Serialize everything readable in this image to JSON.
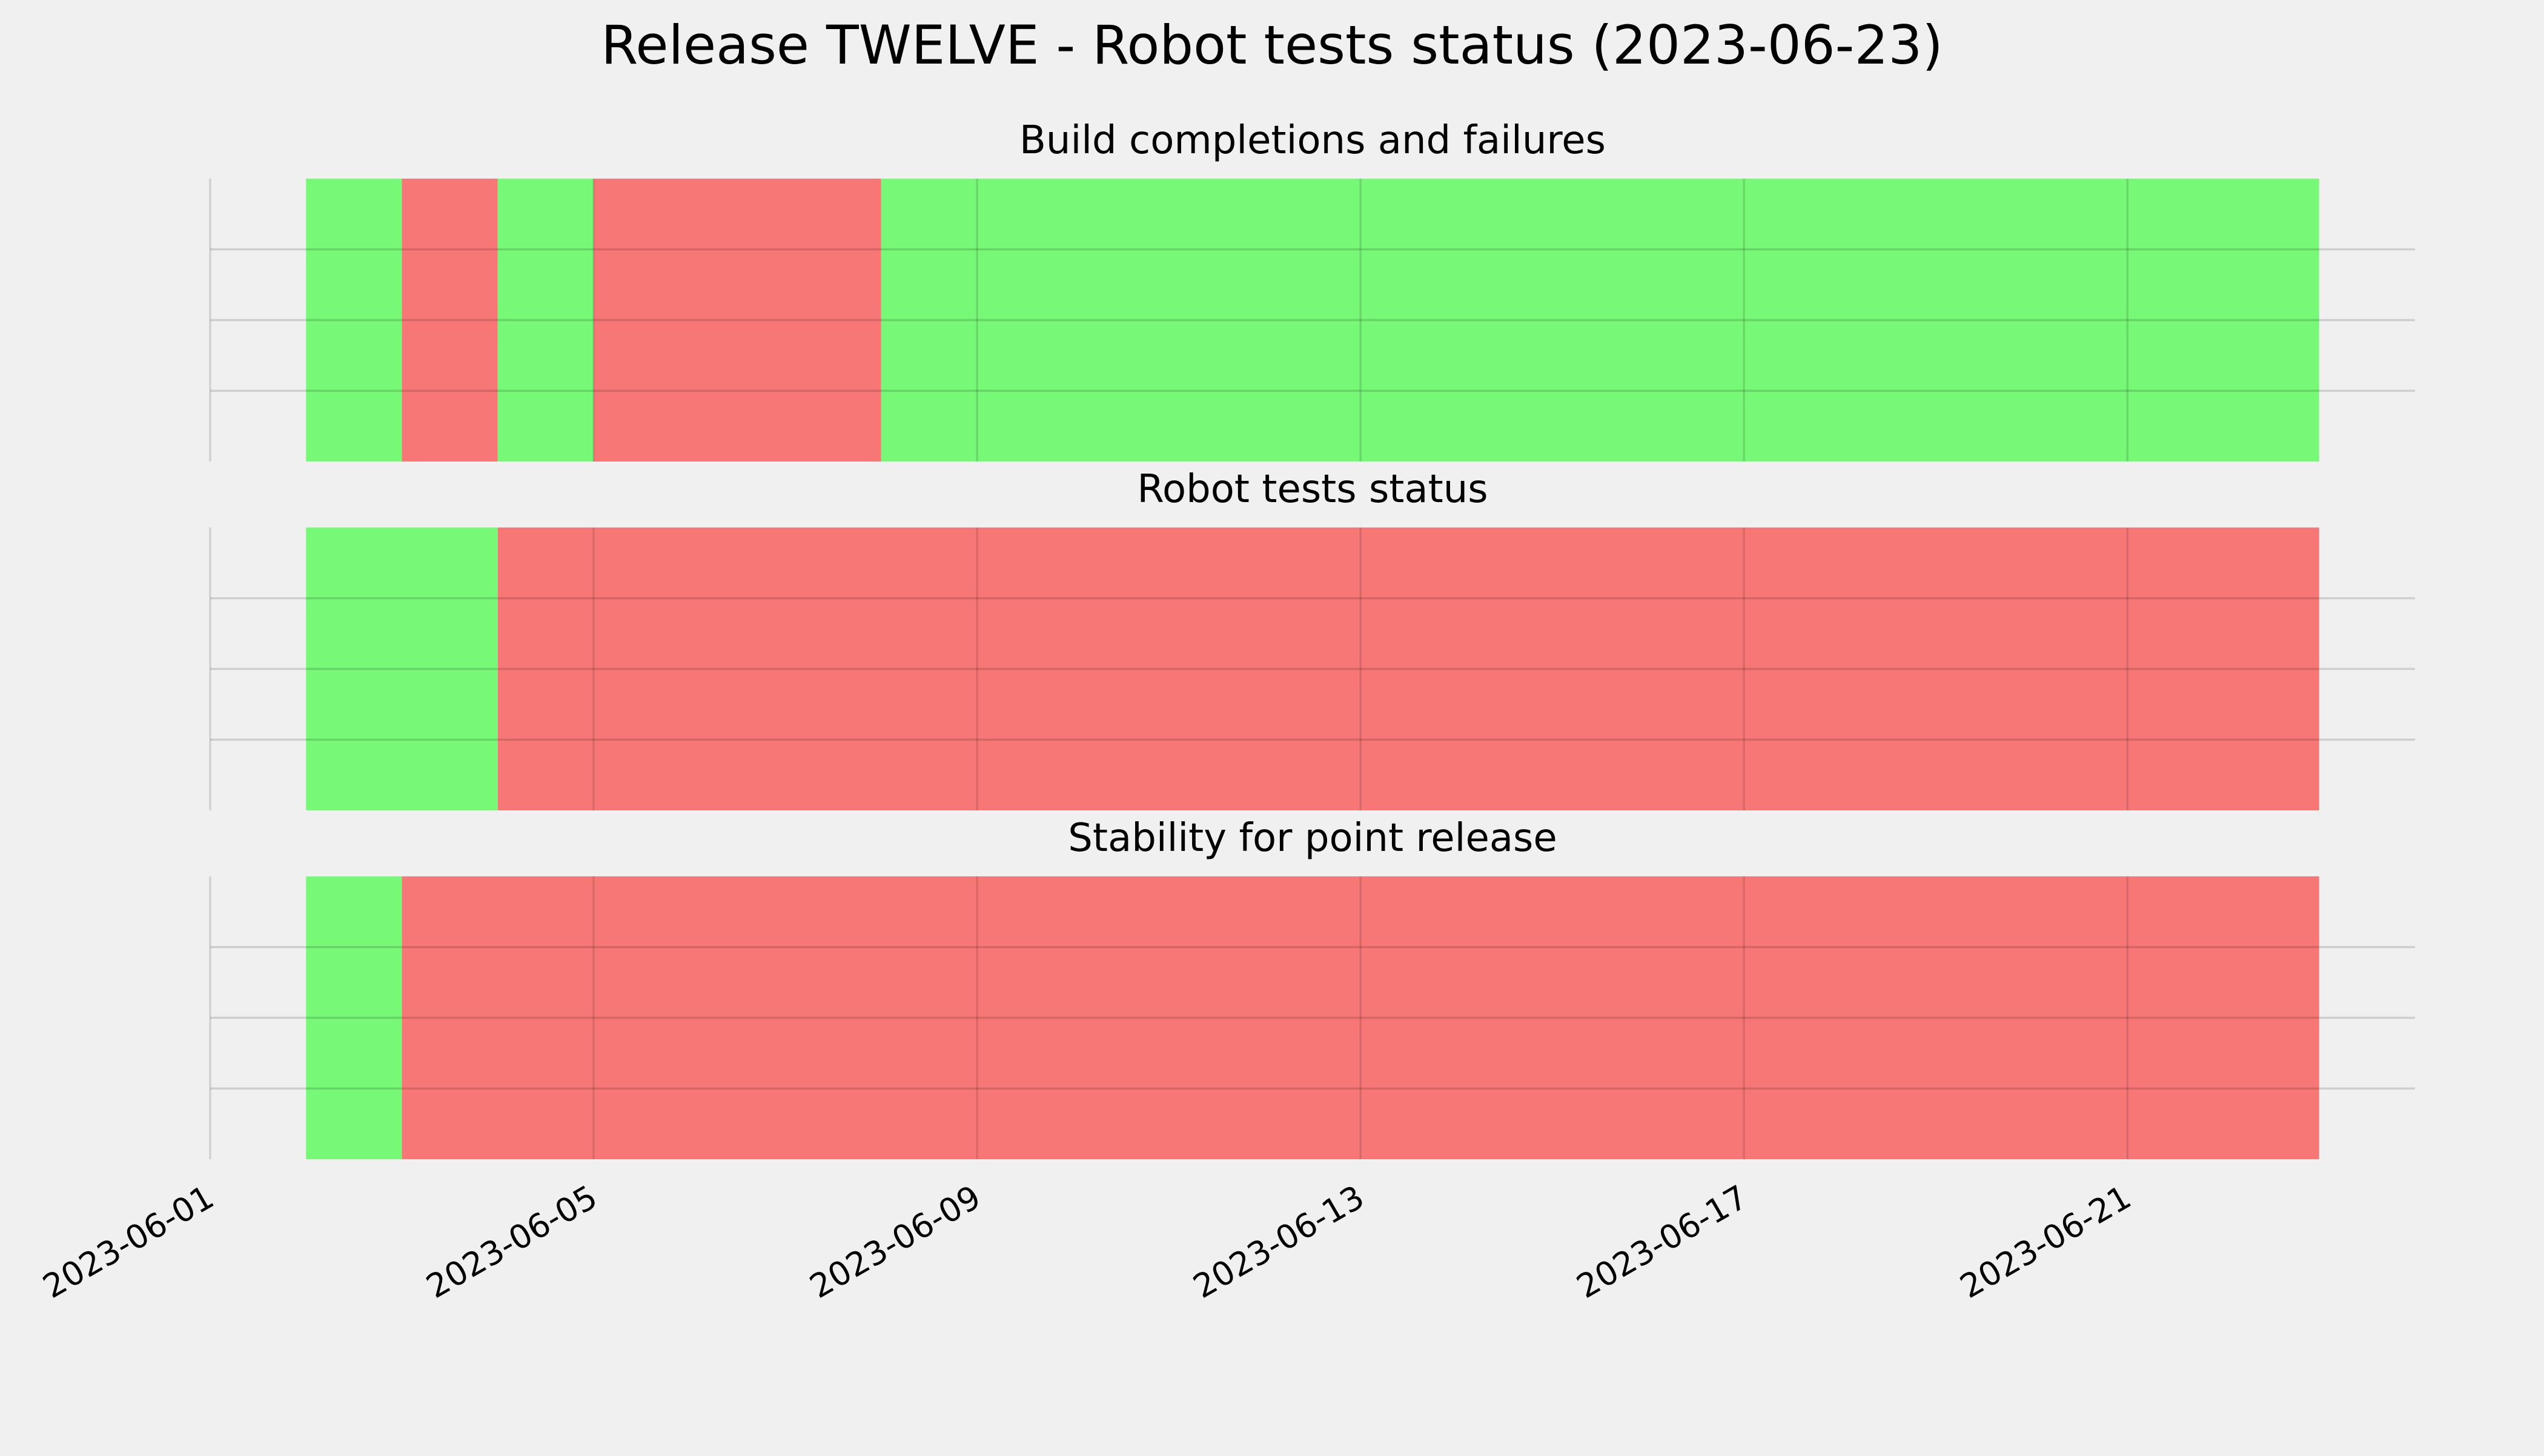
{
  "chart_data": {
    "type": "bar",
    "subtype": "timeline-status-strips",
    "title": "Release TWELVE - Robot tests status (2023-06-23)",
    "x_axis": {
      "type": "date",
      "range": [
        "2023-06-01",
        "2023-06-24"
      ],
      "tick_labels": [
        "2023-06-01",
        "2023-06-05",
        "2023-06-09",
        "2023-06-13",
        "2023-06-17",
        "2023-06-21"
      ],
      "tick_label_rotation_deg": 30
    },
    "y_axis": {
      "tick_labels": [],
      "grid": true
    },
    "grid": true,
    "legend": "none",
    "status_colors": {
      "pass": "#77f877",
      "fail": "#f77777"
    },
    "panels": [
      {
        "title": "Build completions and failures",
        "segments": [
          {
            "start": "2023-06-02",
            "end": "2023-06-03",
            "status": "pass"
          },
          {
            "start": "2023-06-03",
            "end": "2023-06-04",
            "status": "fail"
          },
          {
            "start": "2023-06-04",
            "end": "2023-06-05",
            "status": "pass"
          },
          {
            "start": "2023-06-05",
            "end": "2023-06-08",
            "status": "fail"
          },
          {
            "start": "2023-06-08",
            "end": "2023-06-23",
            "status": "pass"
          }
        ]
      },
      {
        "title": "Robot tests status",
        "segments": [
          {
            "start": "2023-06-02",
            "end": "2023-06-04",
            "status": "pass"
          },
          {
            "start": "2023-06-04",
            "end": "2023-06-23",
            "status": "fail"
          }
        ]
      },
      {
        "title": "Stability for point release",
        "segments": [
          {
            "start": "2023-06-02",
            "end": "2023-06-03",
            "status": "pass"
          },
          {
            "start": "2023-06-03",
            "end": "2023-06-23",
            "status": "fail"
          }
        ]
      }
    ]
  }
}
